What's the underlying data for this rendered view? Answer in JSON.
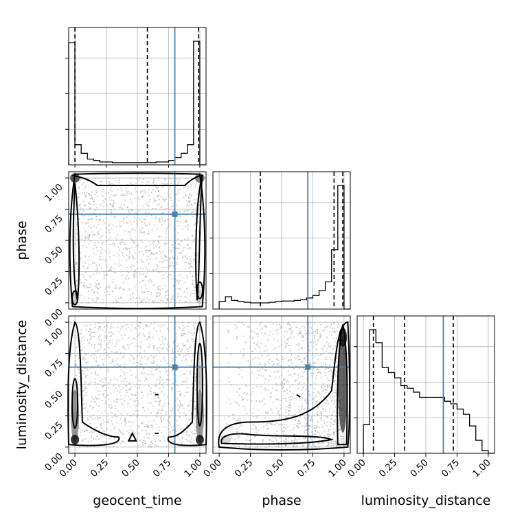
{
  "chart_data": {
    "type": "corner",
    "parameters": [
      "geocent_time",
      "phase",
      "luminosity_distance"
    ],
    "range": [
      -0.05,
      1.05
    ],
    "grid": true,
    "ticks": [
      0.0,
      0.25,
      0.5,
      0.75,
      1.0
    ],
    "tick_labels": [
      "0.00",
      "0.25",
      "0.50",
      "0.75",
      "1.00"
    ],
    "truths": {
      "geocent_time": 0.8,
      "phase": 0.71,
      "luminosity_distance": 0.64
    },
    "truth_color": "#4682b4",
    "quantiles": {
      "geocent_time": [
        0.0,
        0.58,
        0.99
      ],
      "phase": [
        0.33,
        0.92,
        0.99
      ],
      "luminosity_distance": [
        0.08,
        0.33,
        0.72
      ]
    },
    "histograms": {
      "geocent_time": {
        "edges": [
          -0.05,
          0.0,
          0.05,
          0.1,
          0.15,
          0.2,
          0.25,
          0.3,
          0.35,
          0.4,
          0.45,
          0.5,
          0.55,
          0.6,
          0.65,
          0.7,
          0.75,
          0.8,
          0.85,
          0.9,
          0.95,
          1.0,
          1.05
        ],
        "counts": [
          0.85,
          0.14,
          0.08,
          0.04,
          0.03,
          0.02,
          0.02,
          0.015,
          0.015,
          0.015,
          0.015,
          0.015,
          0.015,
          0.015,
          0.02,
          0.02,
          0.03,
          0.05,
          0.08,
          0.14,
          0.86,
          0
        ]
      },
      "phase": {
        "edges": [
          0.0,
          0.05,
          0.1,
          0.15,
          0.2,
          0.25,
          0.3,
          0.35,
          0.4,
          0.45,
          0.5,
          0.55,
          0.6,
          0.65,
          0.7,
          0.75,
          0.8,
          0.85,
          0.9,
          0.95,
          1.0,
          1.05
        ],
        "counts": [
          0.06,
          0.1,
          0.07,
          0.06,
          0.055,
          0.05,
          0.05,
          0.05,
          0.055,
          0.06,
          0.065,
          0.065,
          0.07,
          0.075,
          0.09,
          0.11,
          0.15,
          0.22,
          0.48,
          1.0,
          0
        ]
      },
      "luminosity_distance": {
        "edges": [
          0.0,
          0.05,
          0.1,
          0.15,
          0.2,
          0.25,
          0.3,
          0.35,
          0.4,
          0.45,
          0.5,
          0.55,
          0.6,
          0.65,
          0.7,
          0.75,
          0.8,
          0.85,
          0.9,
          0.95,
          1.0,
          1.05
        ],
        "counts": [
          0.22,
          0.95,
          0.85,
          0.66,
          0.62,
          0.58,
          0.52,
          0.5,
          0.47,
          0.43,
          0.43,
          0.43,
          0.43,
          0.4,
          0.38,
          0.34,
          0.3,
          0.21,
          0.1,
          0.02,
          0
        ]
      }
    },
    "scatter_panels": [
      {
        "x": "geocent_time",
        "y": "phase"
      },
      {
        "x": "geocent_time",
        "y": "luminosity_distance"
      },
      {
        "x": "phase",
        "y": "luminosity_distance"
      }
    ]
  }
}
